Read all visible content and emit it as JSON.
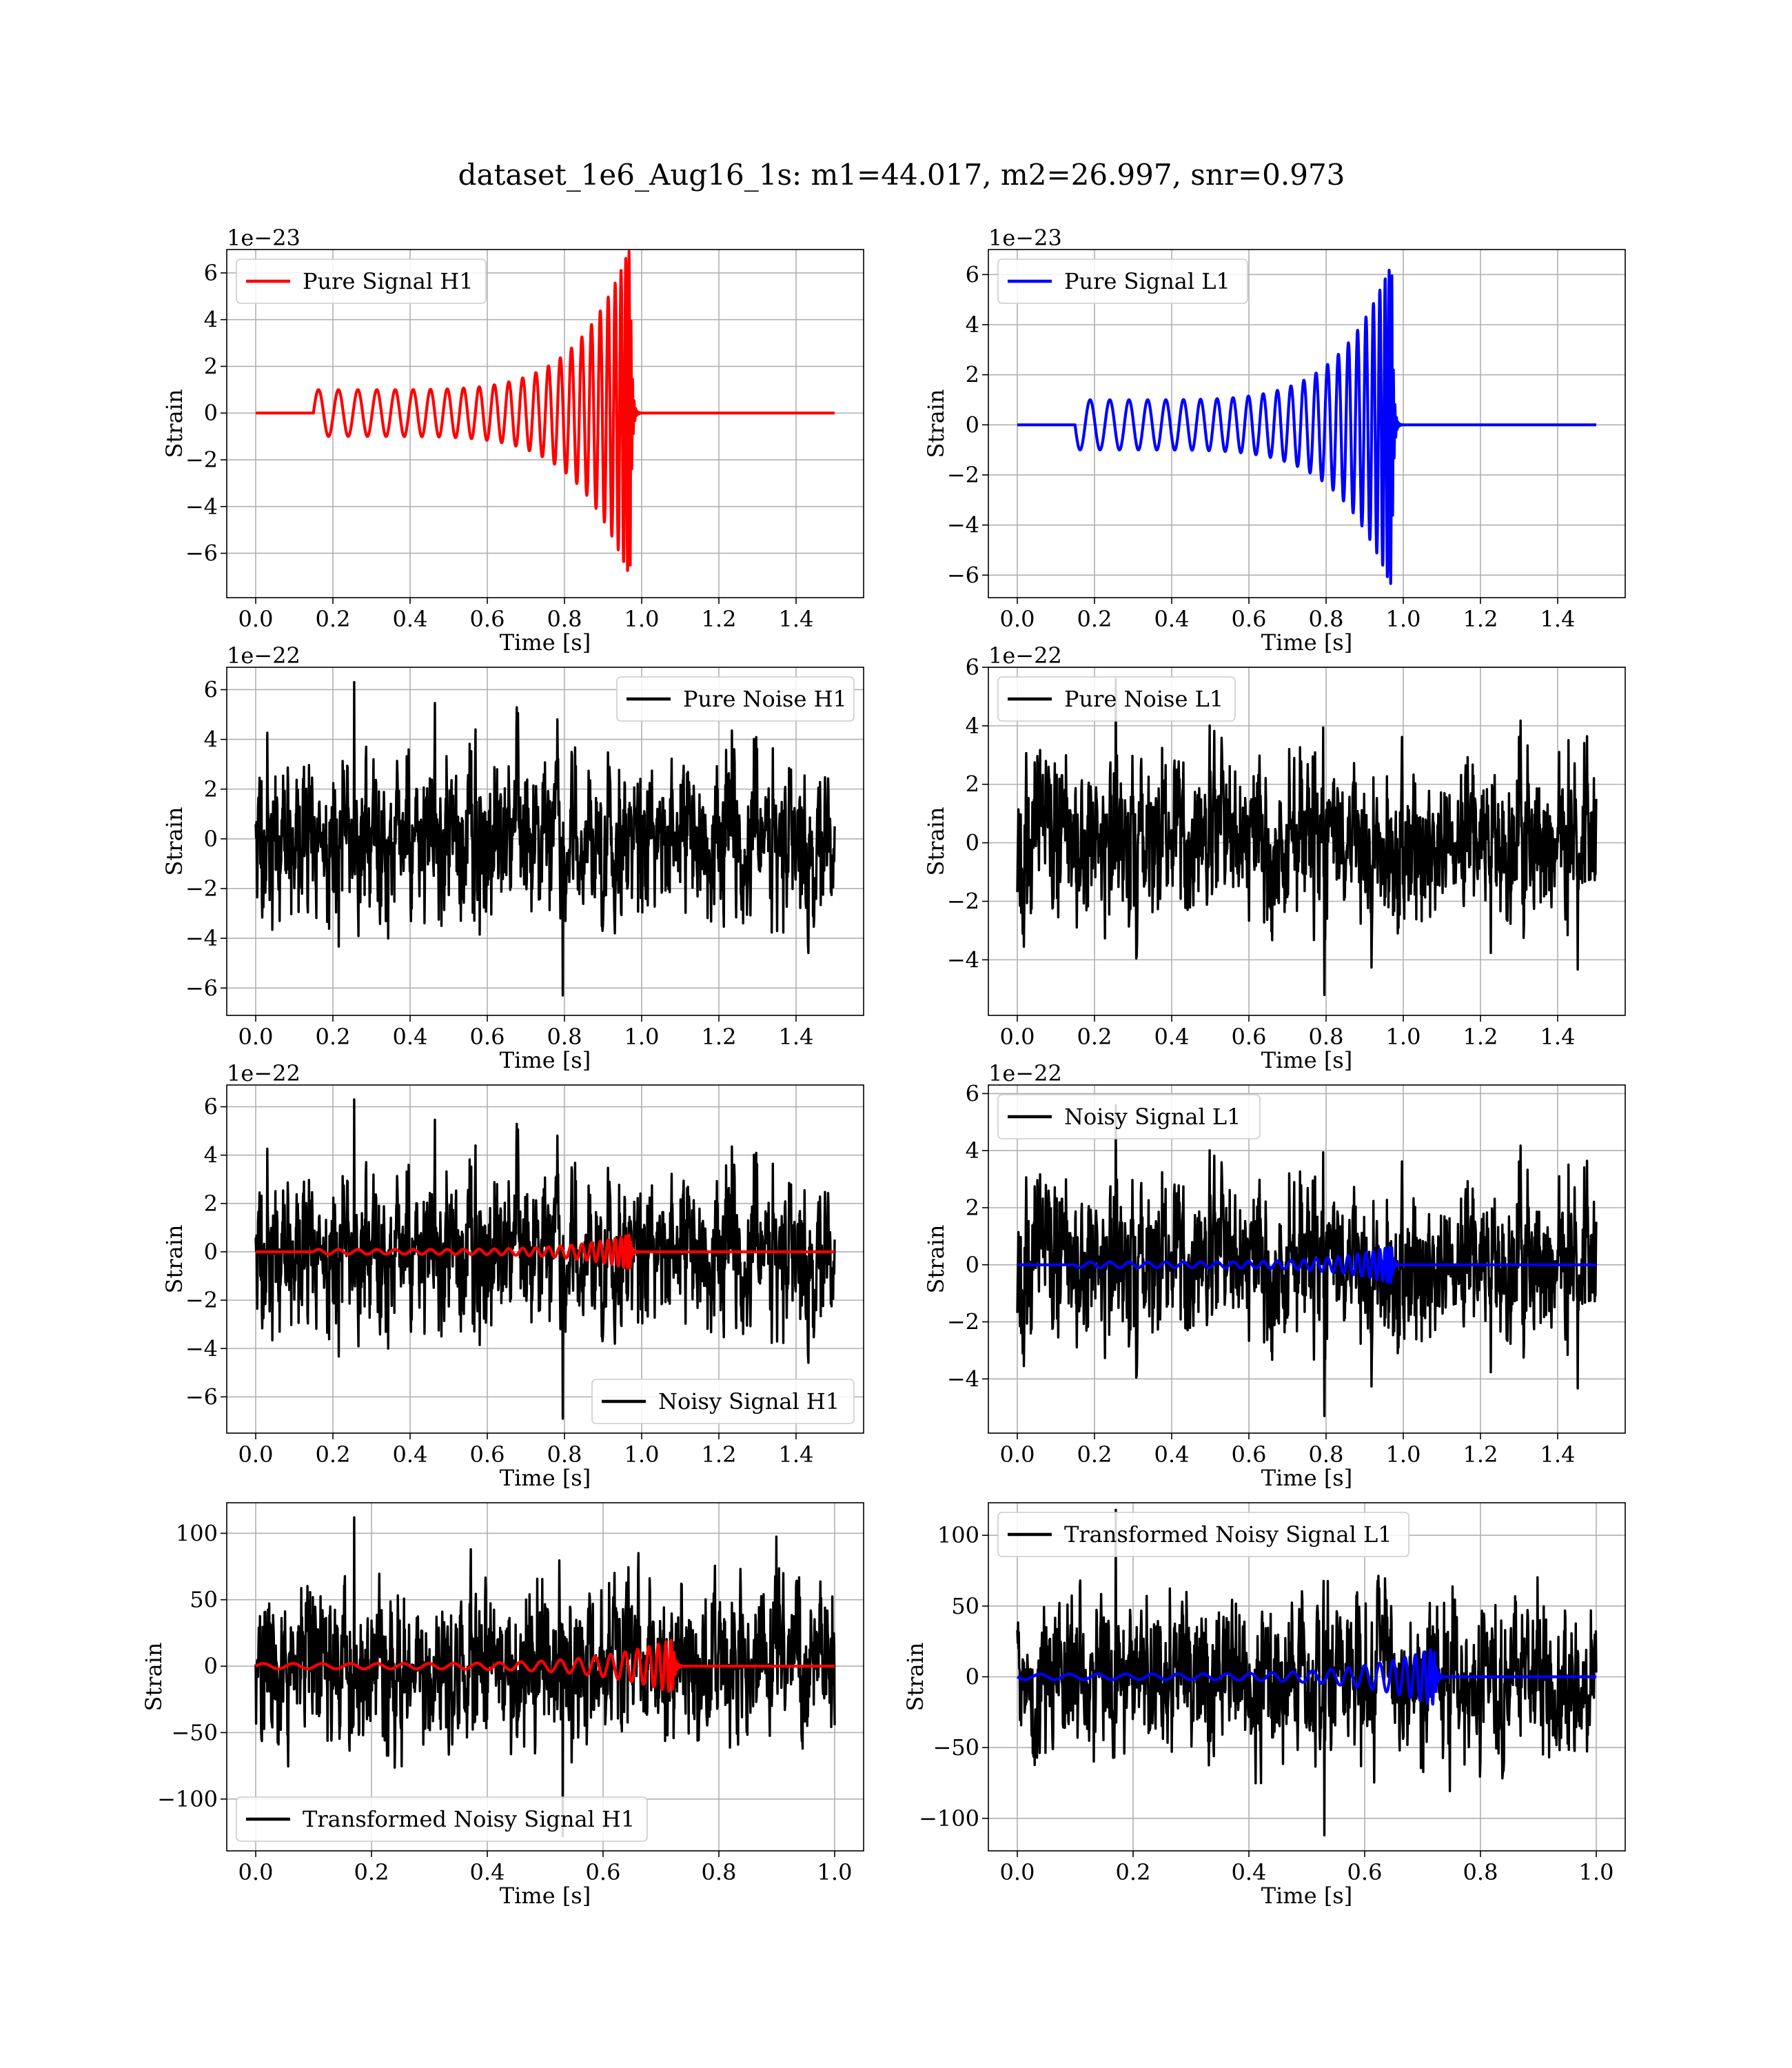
{
  "figure": {
    "title": "dataset_1e6_Aug16_1s: m1=44.017, m2=26.997, snr=0.973"
  },
  "colors": {
    "h1_signal": "#ff0000",
    "l1_signal": "#0000ff",
    "noise": "#000000",
    "grid": "#b0b0b0"
  },
  "chart_data": [
    {
      "id": "pure-signal-h1",
      "type": "line",
      "xlabel": "Time [s]",
      "ylabel": "Strain",
      "offset_text": "1e−23",
      "xlim": [
        -0.075,
        1.575
      ],
      "ylim": [
        -7.9,
        7.0
      ],
      "xticks": [
        0.0,
        0.2,
        0.4,
        0.6,
        0.8,
        1.0,
        1.2,
        1.4
      ],
      "xtick_labels": [
        "0.0",
        "0.2",
        "0.4",
        "0.6",
        "0.8",
        "1.0",
        "1.2",
        "1.4"
      ],
      "yticks": [
        -6,
        -4,
        -2,
        0,
        2,
        4,
        6
      ],
      "ytick_labels": [
        "−6",
        "−4",
        "−2",
        "0",
        "2",
        "4",
        "6"
      ],
      "grid": true,
      "legend_position": "upper left",
      "series": [
        {
          "name": "Pure Signal H1",
          "color": "#ff0000",
          "kind": "chirp",
          "x_start": 0.0,
          "x_end": 1.5,
          "onset": 0.15,
          "merger": 0.95,
          "amp_start": 1.0,
          "amp_peak": 7.1,
          "ringdown": 0.985,
          "first_sign": 1
        }
      ]
    },
    {
      "id": "pure-signal-l1",
      "type": "line",
      "xlabel": "Time [s]",
      "ylabel": "Strain",
      "offset_text": "1e−23",
      "xlim": [
        -0.075,
        1.575
      ],
      "ylim": [
        -6.9,
        7.0
      ],
      "xticks": [
        0.0,
        0.2,
        0.4,
        0.6,
        0.8,
        1.0,
        1.2,
        1.4
      ],
      "xtick_labels": [
        "0.0",
        "0.2",
        "0.4",
        "0.6",
        "0.8",
        "1.0",
        "1.2",
        "1.4"
      ],
      "yticks": [
        -6,
        -4,
        -2,
        0,
        2,
        4,
        6
      ],
      "ytick_labels": [
        "−6",
        "−4",
        "−2",
        "0",
        "2",
        "4",
        "6"
      ],
      "grid": true,
      "legend_position": "upper left",
      "series": [
        {
          "name": "Pure Signal L1",
          "color": "#0000ff",
          "kind": "chirp",
          "x_start": 0.0,
          "x_end": 1.5,
          "onset": 0.15,
          "merger": 0.95,
          "amp_start": 1.0,
          "amp_peak": 6.5,
          "ringdown": 0.985,
          "first_sign": -1
        }
      ]
    },
    {
      "id": "pure-noise-h1",
      "type": "line",
      "xlabel": "Time [s]",
      "ylabel": "Strain",
      "offset_text": "1e−22",
      "xlim": [
        -0.075,
        1.575
      ],
      "ylim": [
        -7.1,
        6.9
      ],
      "xticks": [
        0.0,
        0.2,
        0.4,
        0.6,
        0.8,
        1.0,
        1.2,
        1.4
      ],
      "xtick_labels": [
        "0.0",
        "0.2",
        "0.4",
        "0.6",
        "0.8",
        "1.0",
        "1.2",
        "1.4"
      ],
      "yticks": [
        -6,
        -4,
        -2,
        0,
        2,
        4,
        6
      ],
      "ytick_labels": [
        "−6",
        "−4",
        "−2",
        "0",
        "2",
        "4",
        "6"
      ],
      "grid": true,
      "legend_position": "upper right",
      "series": [
        {
          "name": "Pure Noise H1",
          "color": "#000000",
          "kind": "noise",
          "x_start": 0.0,
          "x_end": 1.5,
          "amplitude": 2.0,
          "min": -6.3,
          "max": 6.3,
          "seed": 11
        }
      ]
    },
    {
      "id": "pure-noise-l1",
      "type": "line",
      "xlabel": "Time [s]",
      "ylabel": "Strain",
      "offset_text": "1e−22",
      "xlim": [
        -0.075,
        1.575
      ],
      "ylim": [
        -5.9,
        6.0
      ],
      "xticks": [
        0.0,
        0.2,
        0.4,
        0.6,
        0.8,
        1.0,
        1.2,
        1.4
      ],
      "xtick_labels": [
        "0.0",
        "0.2",
        "0.4",
        "0.6",
        "0.8",
        "1.0",
        "1.2",
        "1.4"
      ],
      "yticks": [
        -4,
        -2,
        0,
        2,
        4,
        6
      ],
      "ytick_labels": [
        "−4",
        "−2",
        "0",
        "2",
        "4",
        "6"
      ],
      "grid": true,
      "legend_position": "upper left",
      "series": [
        {
          "name": "Pure Noise L1",
          "color": "#000000",
          "kind": "noise",
          "x_start": 0.0,
          "x_end": 1.5,
          "amplitude": 1.7,
          "min": -5.2,
          "max": 5.6,
          "seed": 23
        }
      ]
    },
    {
      "id": "noisy-signal-h1",
      "type": "line",
      "xlabel": "Time [s]",
      "ylabel": "Strain",
      "offset_text": "1e−22",
      "xlim": [
        -0.075,
        1.575
      ],
      "ylim": [
        -7.5,
        6.9
      ],
      "xticks": [
        0.0,
        0.2,
        0.4,
        0.6,
        0.8,
        1.0,
        1.2,
        1.4
      ],
      "xtick_labels": [
        "0.0",
        "0.2",
        "0.4",
        "0.6",
        "0.8",
        "1.0",
        "1.2",
        "1.4"
      ],
      "yticks": [
        -6,
        -4,
        -2,
        0,
        2,
        4,
        6
      ],
      "ytick_labels": [
        "−6",
        "−4",
        "−2",
        "0",
        "2",
        "4",
        "6"
      ],
      "grid": true,
      "legend_position": "lower right",
      "series": [
        {
          "name": "Noisy Signal H1",
          "color": "#000000",
          "kind": "noise",
          "x_start": 0.0,
          "x_end": 1.5,
          "amplitude": 2.0,
          "min": -6.9,
          "max": 6.3,
          "seed": 11
        },
        {
          "name": "",
          "color": "#ff0000",
          "kind": "chirp",
          "x_start": 0.0,
          "x_end": 1.5,
          "onset": 0.15,
          "merger": 0.95,
          "amp_start": 0.1,
          "amp_peak": 0.71,
          "ringdown": 0.985,
          "first_sign": 1
        }
      ]
    },
    {
      "id": "noisy-signal-l1",
      "type": "line",
      "xlabel": "Time [s]",
      "ylabel": "Strain",
      "offset_text": "1e−22",
      "xlim": [
        -0.075,
        1.575
      ],
      "ylim": [
        -5.9,
        6.3
      ],
      "xticks": [
        0.0,
        0.2,
        0.4,
        0.6,
        0.8,
        1.0,
        1.2,
        1.4
      ],
      "xtick_labels": [
        "0.0",
        "0.2",
        "0.4",
        "0.6",
        "0.8",
        "1.0",
        "1.2",
        "1.4"
      ],
      "yticks": [
        -4,
        -2,
        0,
        2,
        4,
        6
      ],
      "ytick_labels": [
        "−4",
        "−2",
        "0",
        "2",
        "4",
        "6"
      ],
      "grid": true,
      "legend_position": "upper left",
      "series": [
        {
          "name": "Noisy Signal L1",
          "color": "#000000",
          "kind": "noise",
          "x_start": 0.0,
          "x_end": 1.5,
          "amplitude": 1.7,
          "min": -5.3,
          "max": 5.6,
          "seed": 23
        },
        {
          "name": "",
          "color": "#0000ff",
          "kind": "chirp",
          "x_start": 0.0,
          "x_end": 1.5,
          "onset": 0.15,
          "merger": 0.95,
          "amp_start": 0.1,
          "amp_peak": 0.65,
          "ringdown": 0.985,
          "first_sign": -1
        }
      ]
    },
    {
      "id": "transformed-noisy-signal-h1",
      "type": "line",
      "xlabel": "Time [s]",
      "ylabel": "Strain",
      "offset_text": "",
      "xlim": [
        -0.05,
        1.05
      ],
      "ylim": [
        -139,
        123
      ],
      "xticks": [
        0.0,
        0.2,
        0.4,
        0.6,
        0.8,
        1.0
      ],
      "xtick_labels": [
        "0.0",
        "0.2",
        "0.4",
        "0.6",
        "0.8",
        "1.0"
      ],
      "yticks": [
        -100,
        -50,
        0,
        50,
        100
      ],
      "ytick_labels": [
        "−100",
        "−50",
        "0",
        "50",
        "100"
      ],
      "grid": true,
      "legend_position": "lower left",
      "series": [
        {
          "name": "Transformed Noisy Signal H1",
          "color": "#000000",
          "kind": "noise",
          "x_start": 0.0,
          "x_end": 1.0,
          "amplitude": 36,
          "min": -128,
          "max": 112,
          "seed": 37
        },
        {
          "name": "",
          "color": "#ff0000",
          "kind": "chirp",
          "x_start": 0.0,
          "x_end": 1.0,
          "onset": 0.0,
          "merger": 0.7,
          "amp_start": 2,
          "amp_peak": 20,
          "ringdown": 0.715,
          "first_sign": 1
        }
      ]
    },
    {
      "id": "transformed-noisy-signal-l1",
      "type": "line",
      "xlabel": "Time [s]",
      "ylabel": "Strain",
      "offset_text": "",
      "xlim": [
        -0.05,
        1.05
      ],
      "ylim": [
        -123,
        123
      ],
      "xticks": [
        0.0,
        0.2,
        0.4,
        0.6,
        0.8,
        1.0
      ],
      "xtick_labels": [
        "0.0",
        "0.2",
        "0.4",
        "0.6",
        "0.8",
        "1.0"
      ],
      "yticks": [
        -100,
        -50,
        0,
        50,
        100
      ],
      "ytick_labels": [
        "−100",
        "−50",
        "0",
        "50",
        "100"
      ],
      "grid": true,
      "legend_position": "upper left",
      "series": [
        {
          "name": "Transformed Noisy Signal L1",
          "color": "#000000",
          "kind": "noise",
          "x_start": 0.0,
          "x_end": 1.0,
          "amplitude": 33,
          "min": -112,
          "max": 118,
          "seed": 41
        },
        {
          "name": "",
          "color": "#0000ff",
          "kind": "chirp",
          "x_start": 0.0,
          "x_end": 1.0,
          "onset": 0.0,
          "merger": 0.7,
          "amp_start": 2,
          "amp_peak": 20,
          "ringdown": 0.715,
          "first_sign": -1
        }
      ]
    }
  ]
}
